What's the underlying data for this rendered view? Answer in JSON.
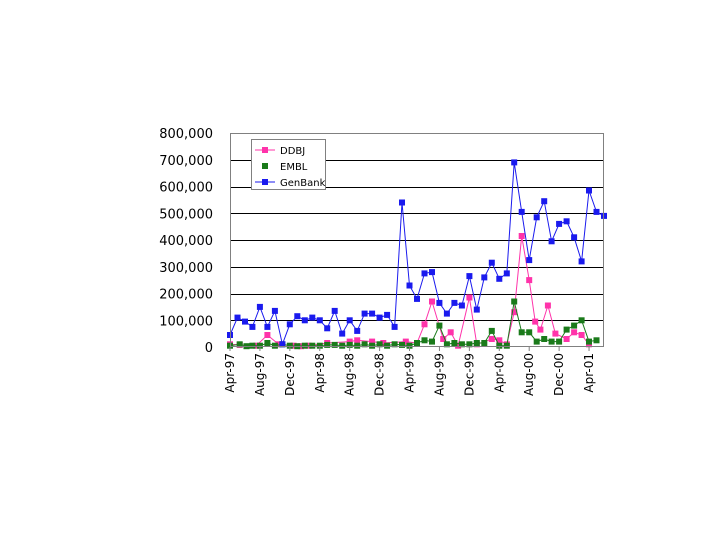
{
  "chart_data": {
    "type": "line",
    "title": "",
    "xlabel": "",
    "ylabel": "",
    "ylim": [
      0,
      800000
    ],
    "y_ticks": [
      0,
      100000,
      200000,
      300000,
      400000,
      500000,
      600000,
      700000,
      800000
    ],
    "y_tick_labels": [
      "0",
      "100,000",
      "200,000",
      "300,000",
      "400,000",
      "500,000",
      "600,000",
      "700,000",
      "800,000"
    ],
    "x_tick_labels": [
      "Apr-97",
      "Aug-97",
      "Dec-97",
      "Apr-98",
      "Aug-98",
      "Dec-98",
      "Apr-99",
      "Aug-99",
      "Dec-99",
      "Apr-00",
      "Aug-00",
      "Dec-00",
      "Apr-01"
    ],
    "x_tick_label_month_index": [
      0,
      4,
      8,
      12,
      16,
      20,
      24,
      28,
      32,
      36,
      40,
      44,
      48
    ],
    "grid": true,
    "legend_position": "top-left",
    "background": "#ffffff",
    "series": [
      {
        "name": "DDBJ",
        "color": "#ff33aa",
        "marker": "square",
        "x": [
          0.0,
          1.3,
          3.5,
          5.0,
          6.5,
          8.5,
          9.5,
          10.5,
          13.0,
          16.0,
          17.0,
          19.0,
          20.5,
          23.5,
          25.0,
          26.0,
          27.0,
          28.5,
          29.5,
          30.5,
          32.0,
          33.0,
          35.0,
          36.0,
          37.0,
          38.0,
          39.0,
          40.0,
          40.8,
          41.5,
          42.5,
          43.5,
          45.0,
          46.0,
          47.0,
          48.0
        ],
        "values": [
          10000,
          8000,
          5000,
          45000,
          10000,
          5000,
          3000,
          5000,
          15000,
          20000,
          25000,
          20000,
          15000,
          20000,
          15000,
          85000,
          170000,
          30000,
          55000,
          5000,
          185000,
          10000,
          30000,
          25000,
          10000,
          130000,
          415000,
          250000,
          95000,
          65000,
          155000,
          50000,
          30000,
          55000,
          45000,
          10000
        ]
      },
      {
        "name": "EMBL",
        "color": "#1a7a1a",
        "marker": "square",
        "x": [
          0.0,
          1.3,
          2.2,
          3.0,
          4.0,
          5.0,
          6.0,
          7.0,
          8.0,
          9.0,
          10.0,
          11.0,
          12.0,
          13.0,
          14.0,
          15.0,
          16.0,
          17.0,
          18.0,
          19.0,
          20.0,
          21.0,
          22.0,
          23.0,
          24.0,
          25.0,
          26.0,
          27.0,
          28.0,
          29.0,
          30.0,
          31.0,
          32.0,
          33.0,
          34.0,
          35.0,
          36.0,
          37.0,
          38.0,
          39.0,
          40.0,
          41.0,
          42.0,
          43.0,
          44.0,
          45.0,
          46.0,
          47.0,
          48.0,
          49.0
        ],
        "values": [
          5000,
          10000,
          3000,
          5000,
          5000,
          15000,
          5000,
          10000,
          5000,
          3000,
          5000,
          5000,
          5000,
          8000,
          8000,
          5000,
          8000,
          5000,
          10000,
          5000,
          10000,
          5000,
          10000,
          8000,
          5000,
          15000,
          25000,
          20000,
          80000,
          10000,
          15000,
          10000,
          10000,
          15000,
          15000,
          60000,
          5000,
          5000,
          170000,
          55000,
          55000,
          20000,
          30000,
          20000,
          20000,
          65000,
          80000,
          100000,
          20000,
          25000
        ]
      },
      {
        "name": "GenBank",
        "color": "#1a1aee",
        "marker": "square",
        "x": [
          0.0,
          1.0,
          2.0,
          3.0,
          4.0,
          5.0,
          6.0,
          7.0,
          8.0,
          9.0,
          10.0,
          11.0,
          12.0,
          13.0,
          14.0,
          15.0,
          16.0,
          17.0,
          18.0,
          19.0,
          20.0,
          21.0,
          22.0,
          23.0,
          24.0,
          25.0,
          26.0,
          27.0,
          28.0,
          29.0,
          30.0,
          31.0,
          32.0,
          33.0,
          34.0,
          35.0,
          36.0,
          37.0,
          38.0,
          39.0,
          40.0,
          41.0,
          42.0,
          43.0,
          44.0,
          45.0,
          46.0,
          47.0,
          48.0,
          49.0,
          50.0
        ],
        "values": [
          45000,
          110000,
          95000,
          75000,
          150000,
          75000,
          135000,
          10000,
          85000,
          115000,
          100000,
          110000,
          100000,
          70000,
          135000,
          50000,
          100000,
          60000,
          125000,
          125000,
          110000,
          120000,
          75000,
          540000,
          230000,
          180000,
          275000,
          280000,
          165000,
          125000,
          165000,
          155000,
          265000,
          140000,
          260000,
          315000,
          255000,
          275000,
          690000,
          505000,
          325000,
          485000,
          545000,
          395000,
          460000,
          470000,
          410000,
          320000,
          585000,
          505000,
          490000
        ]
      }
    ]
  }
}
